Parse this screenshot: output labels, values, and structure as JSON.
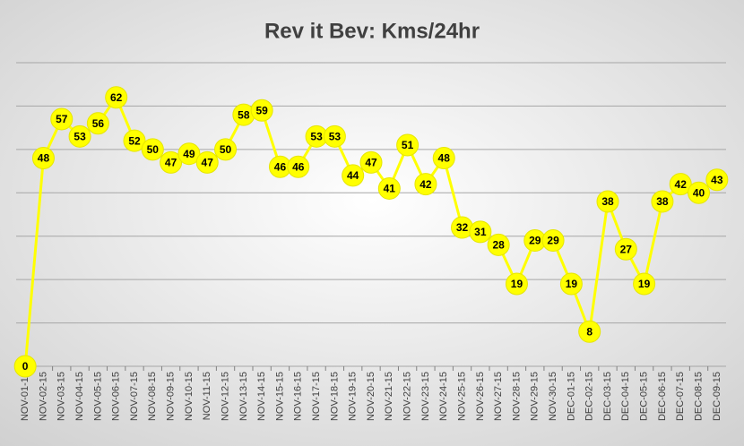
{
  "chart_data": {
    "type": "line",
    "title": "Rev it Bev: Kms/24hr",
    "categories": [
      "NOV-01-15",
      "NOV-02-15",
      "NOV-03-15",
      "NOV-04-15",
      "NOV-05-15",
      "NOV-06-15",
      "NOV-07-15",
      "NOV-08-15",
      "NOV-09-15",
      "NOV-10-15",
      "NOV-11-15",
      "NOV-12-15",
      "NOV-13-15",
      "NOV-14-15",
      "NOV-15-15",
      "NOV-16-15",
      "NOV-17-15",
      "NOV-18-15",
      "NOV-19-15",
      "NOV-20-15",
      "NOV-21-15",
      "NOV-22-15",
      "NOV-23-15",
      "NOV-24-15",
      "NOV-25-15",
      "NOV-26-15",
      "NOV-27-15",
      "NOV-28-15",
      "NOV-29-15",
      "NOV-30-15",
      "DEC-01-15",
      "DEC-02-15",
      "DEC-03-15",
      "DEC-04-15",
      "DEC-05-15",
      "DEC-06-15",
      "DEC-07-15",
      "DEC-08-15",
      "DEC-09-15"
    ],
    "values": [
      0,
      48,
      57,
      53,
      56,
      62,
      52,
      50,
      47,
      49,
      47,
      50,
      58,
      59,
      46,
      46,
      53,
      53,
      44,
      47,
      41,
      51,
      42,
      48,
      32,
      31,
      28,
      19,
      29,
      29,
      19,
      8,
      38,
      27,
      19,
      38,
      42,
      40,
      43
    ],
    "color": "#ffff00",
    "ylim": [
      0,
      70
    ],
    "yticks": [
      0,
      10,
      20,
      30,
      40,
      50,
      60,
      70
    ],
    "grid": true
  }
}
